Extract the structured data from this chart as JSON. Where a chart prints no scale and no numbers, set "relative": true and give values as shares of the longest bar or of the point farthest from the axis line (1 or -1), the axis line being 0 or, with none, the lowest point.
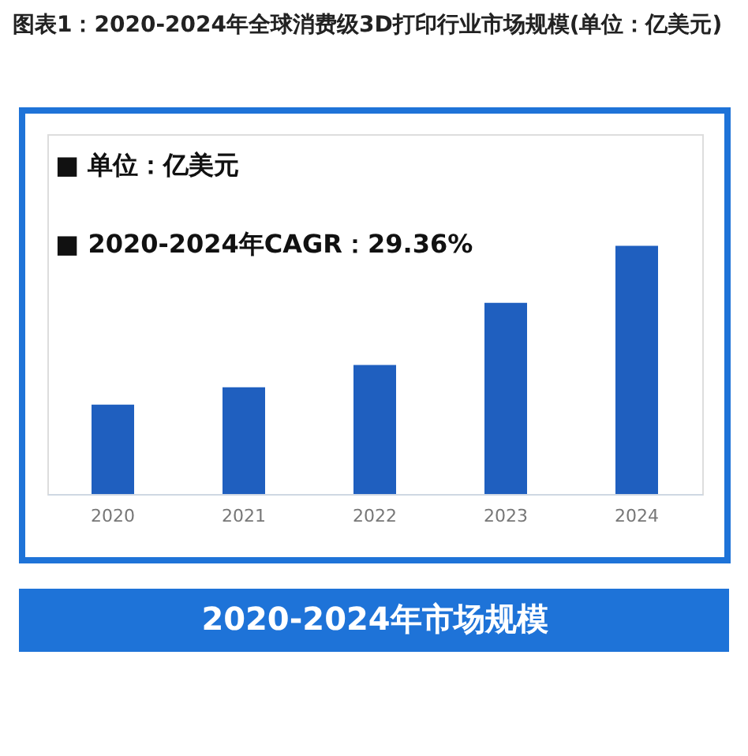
{
  "chart_data": {
    "type": "bar",
    "title": "图表1：2020-2024年全球消费级3D打印行业市场规模(单位：亿美元)",
    "xlabel": "2020-2024年市场规模",
    "annotations": [
      "■  单位：亿美元",
      "■  2020-2024年CAGR：29.36%"
    ],
    "categories": [
      "2020",
      "2021",
      "2022",
      "2023",
      "2024"
    ],
    "relative": true,
    "values": [
      0.36,
      0.43,
      0.52,
      0.77,
      1.0
    ],
    "color": "#1f5fbf",
    "grid": false
  }
}
